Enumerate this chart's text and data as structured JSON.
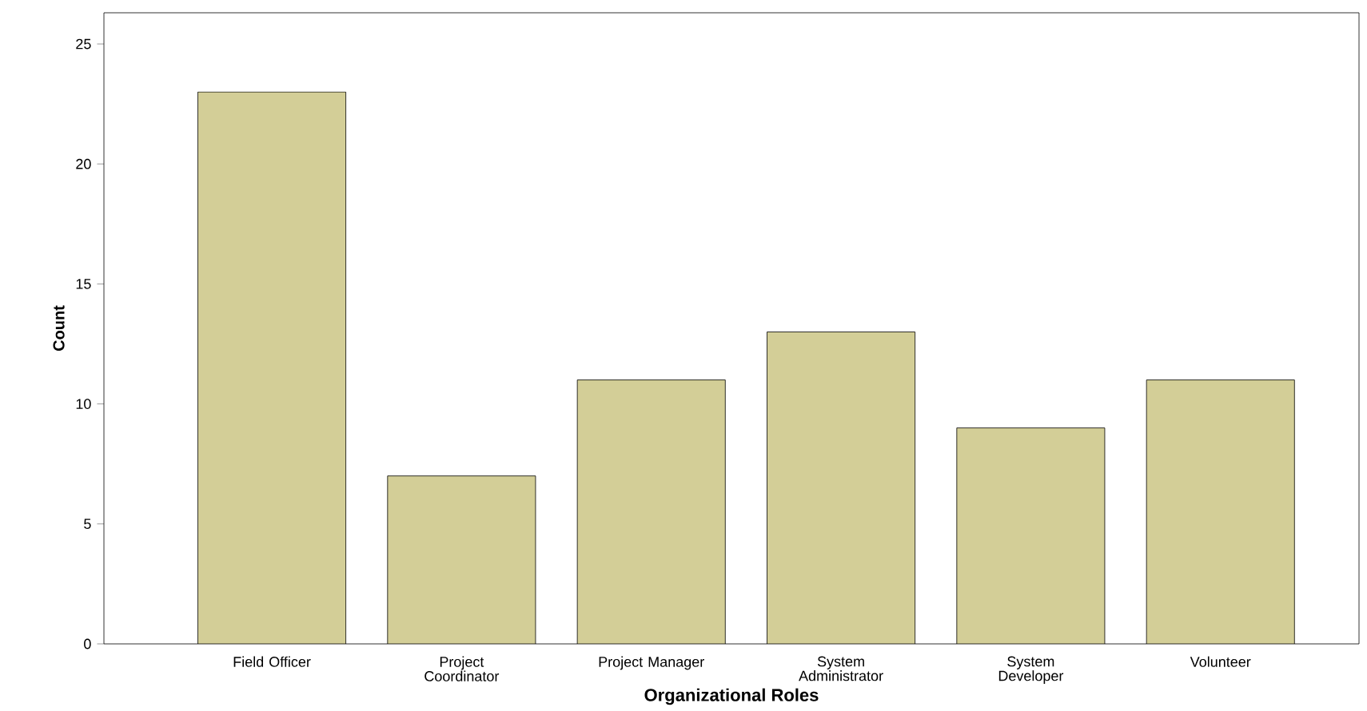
{
  "chart_data": {
    "type": "bar",
    "xlabel": "Organizational Roles",
    "ylabel": "Count",
    "categories": [
      "Field Officer",
      "Project Coordinator",
      "Project Manager",
      "System Administrator",
      "System Developer",
      "Volunteer"
    ],
    "values": [
      23,
      7,
      11,
      13,
      9,
      11
    ],
    "color": "#d3ce97",
    "ylim": [
      0,
      26.3
    ],
    "yticks": [
      0,
      5,
      10,
      15,
      20,
      25
    ],
    "grid": false
  }
}
